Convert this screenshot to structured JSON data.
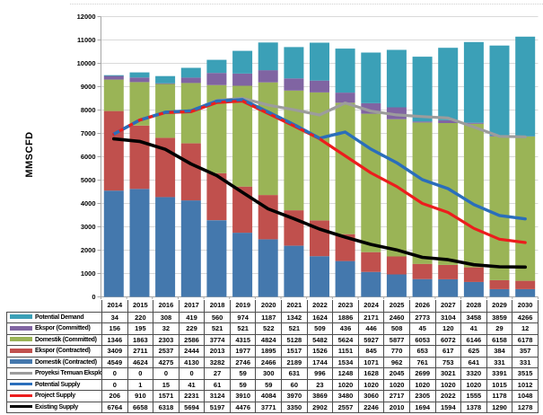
{
  "chart_data": {
    "type": "combo-stacked-bar-cumulative-line",
    "title": "",
    "ylabel": "MMSCFD",
    "ylim": [
      0,
      12000
    ],
    "ytick_step": 1000,
    "grid": "horizontal",
    "legend_position": "table-left-column",
    "categories": [
      "2014",
      "2015",
      "2016",
      "2017",
      "2018",
      "2019",
      "2020",
      "2021",
      "2022",
      "2023",
      "2024",
      "2025",
      "2026",
      "2027",
      "2028",
      "2029",
      "2030"
    ],
    "series": [
      {
        "name": "Potential Demand",
        "role": "bar",
        "stack_index": 4,
        "color": "#3ba0b7",
        "values": [
          34,
          220,
          308,
          419,
          560,
          974,
          1187,
          1342,
          1624,
          1886,
          2171,
          2460,
          2773,
          3104,
          3458,
          3859,
          4266
        ]
      },
      {
        "name": "Ekspor (Committed)",
        "role": "bar",
        "stack_index": 3,
        "color": "#8064a2",
        "values": [
          156,
          195,
          32,
          229,
          521,
          521,
          522,
          521,
          509,
          436,
          446,
          508,
          45,
          120,
          41,
          29,
          12
        ]
      },
      {
        "name": "Domestik (Committed)",
        "role": "bar",
        "stack_index": 2,
        "color": "#9ab456",
        "values": [
          1346,
          1863,
          2303,
          2586,
          3774,
          4315,
          4824,
          5128,
          5482,
          5624,
          5927,
          5877,
          6053,
          6072,
          6146,
          6158,
          6178
        ]
      },
      {
        "name": "Ekspor (Contracted)",
        "role": "bar",
        "stack_index": 1,
        "color": "#c0504d",
        "values": [
          3409,
          2711,
          2537,
          2444,
          2013,
          1977,
          1895,
          1517,
          1526,
          1151,
          845,
          770,
          653,
          617,
          625,
          384,
          357
        ]
      },
      {
        "name": "Domestik (Contracted)",
        "role": "bar",
        "stack_index": 0,
        "color": "#4478ad",
        "values": [
          4549,
          4624,
          4275,
          4130,
          3282,
          2746,
          2466,
          2189,
          1744,
          1534,
          1071,
          962,
          761,
          753,
          641,
          331,
          331
        ]
      },
      {
        "name": "Proyeksi Temuan Eksplorasi",
        "role": "line",
        "cumulative_order": 3,
        "color": "#9c9c9c",
        "values": [
          0,
          0,
          0,
          0,
          27,
          59,
          300,
          631,
          996,
          1248,
          1628,
          2045,
          2699,
          3021,
          3320,
          3391,
          3515
        ]
      },
      {
        "name": "Potential Supply",
        "role": "line",
        "cumulative_order": 2,
        "color": "#2a6ebb",
        "dash_until_index": 9,
        "values": [
          0,
          1,
          15,
          41,
          61,
          59,
          59,
          60,
          23,
          1020,
          1020,
          1020,
          1020,
          1020,
          1020,
          1015,
          1012
        ]
      },
      {
        "name": "Project Supply",
        "role": "line",
        "cumulative_order": 1,
        "color": "#ec1d1d",
        "values": [
          206,
          910,
          1571,
          2231,
          3124,
          3910,
          4084,
          3970,
          3869,
          3480,
          3060,
          2717,
          2305,
          2022,
          1555,
          1178,
          1048
        ]
      },
      {
        "name": "Existing Supply",
        "role": "line",
        "cumulative_order": 0,
        "color": "#000000",
        "values": [
          6764,
          6658,
          6318,
          5694,
          5197,
          4476,
          3771,
          3350,
          2902,
          2557,
          2246,
          2010,
          1694,
          1594,
          1378,
          1290,
          1278
        ]
      }
    ]
  }
}
